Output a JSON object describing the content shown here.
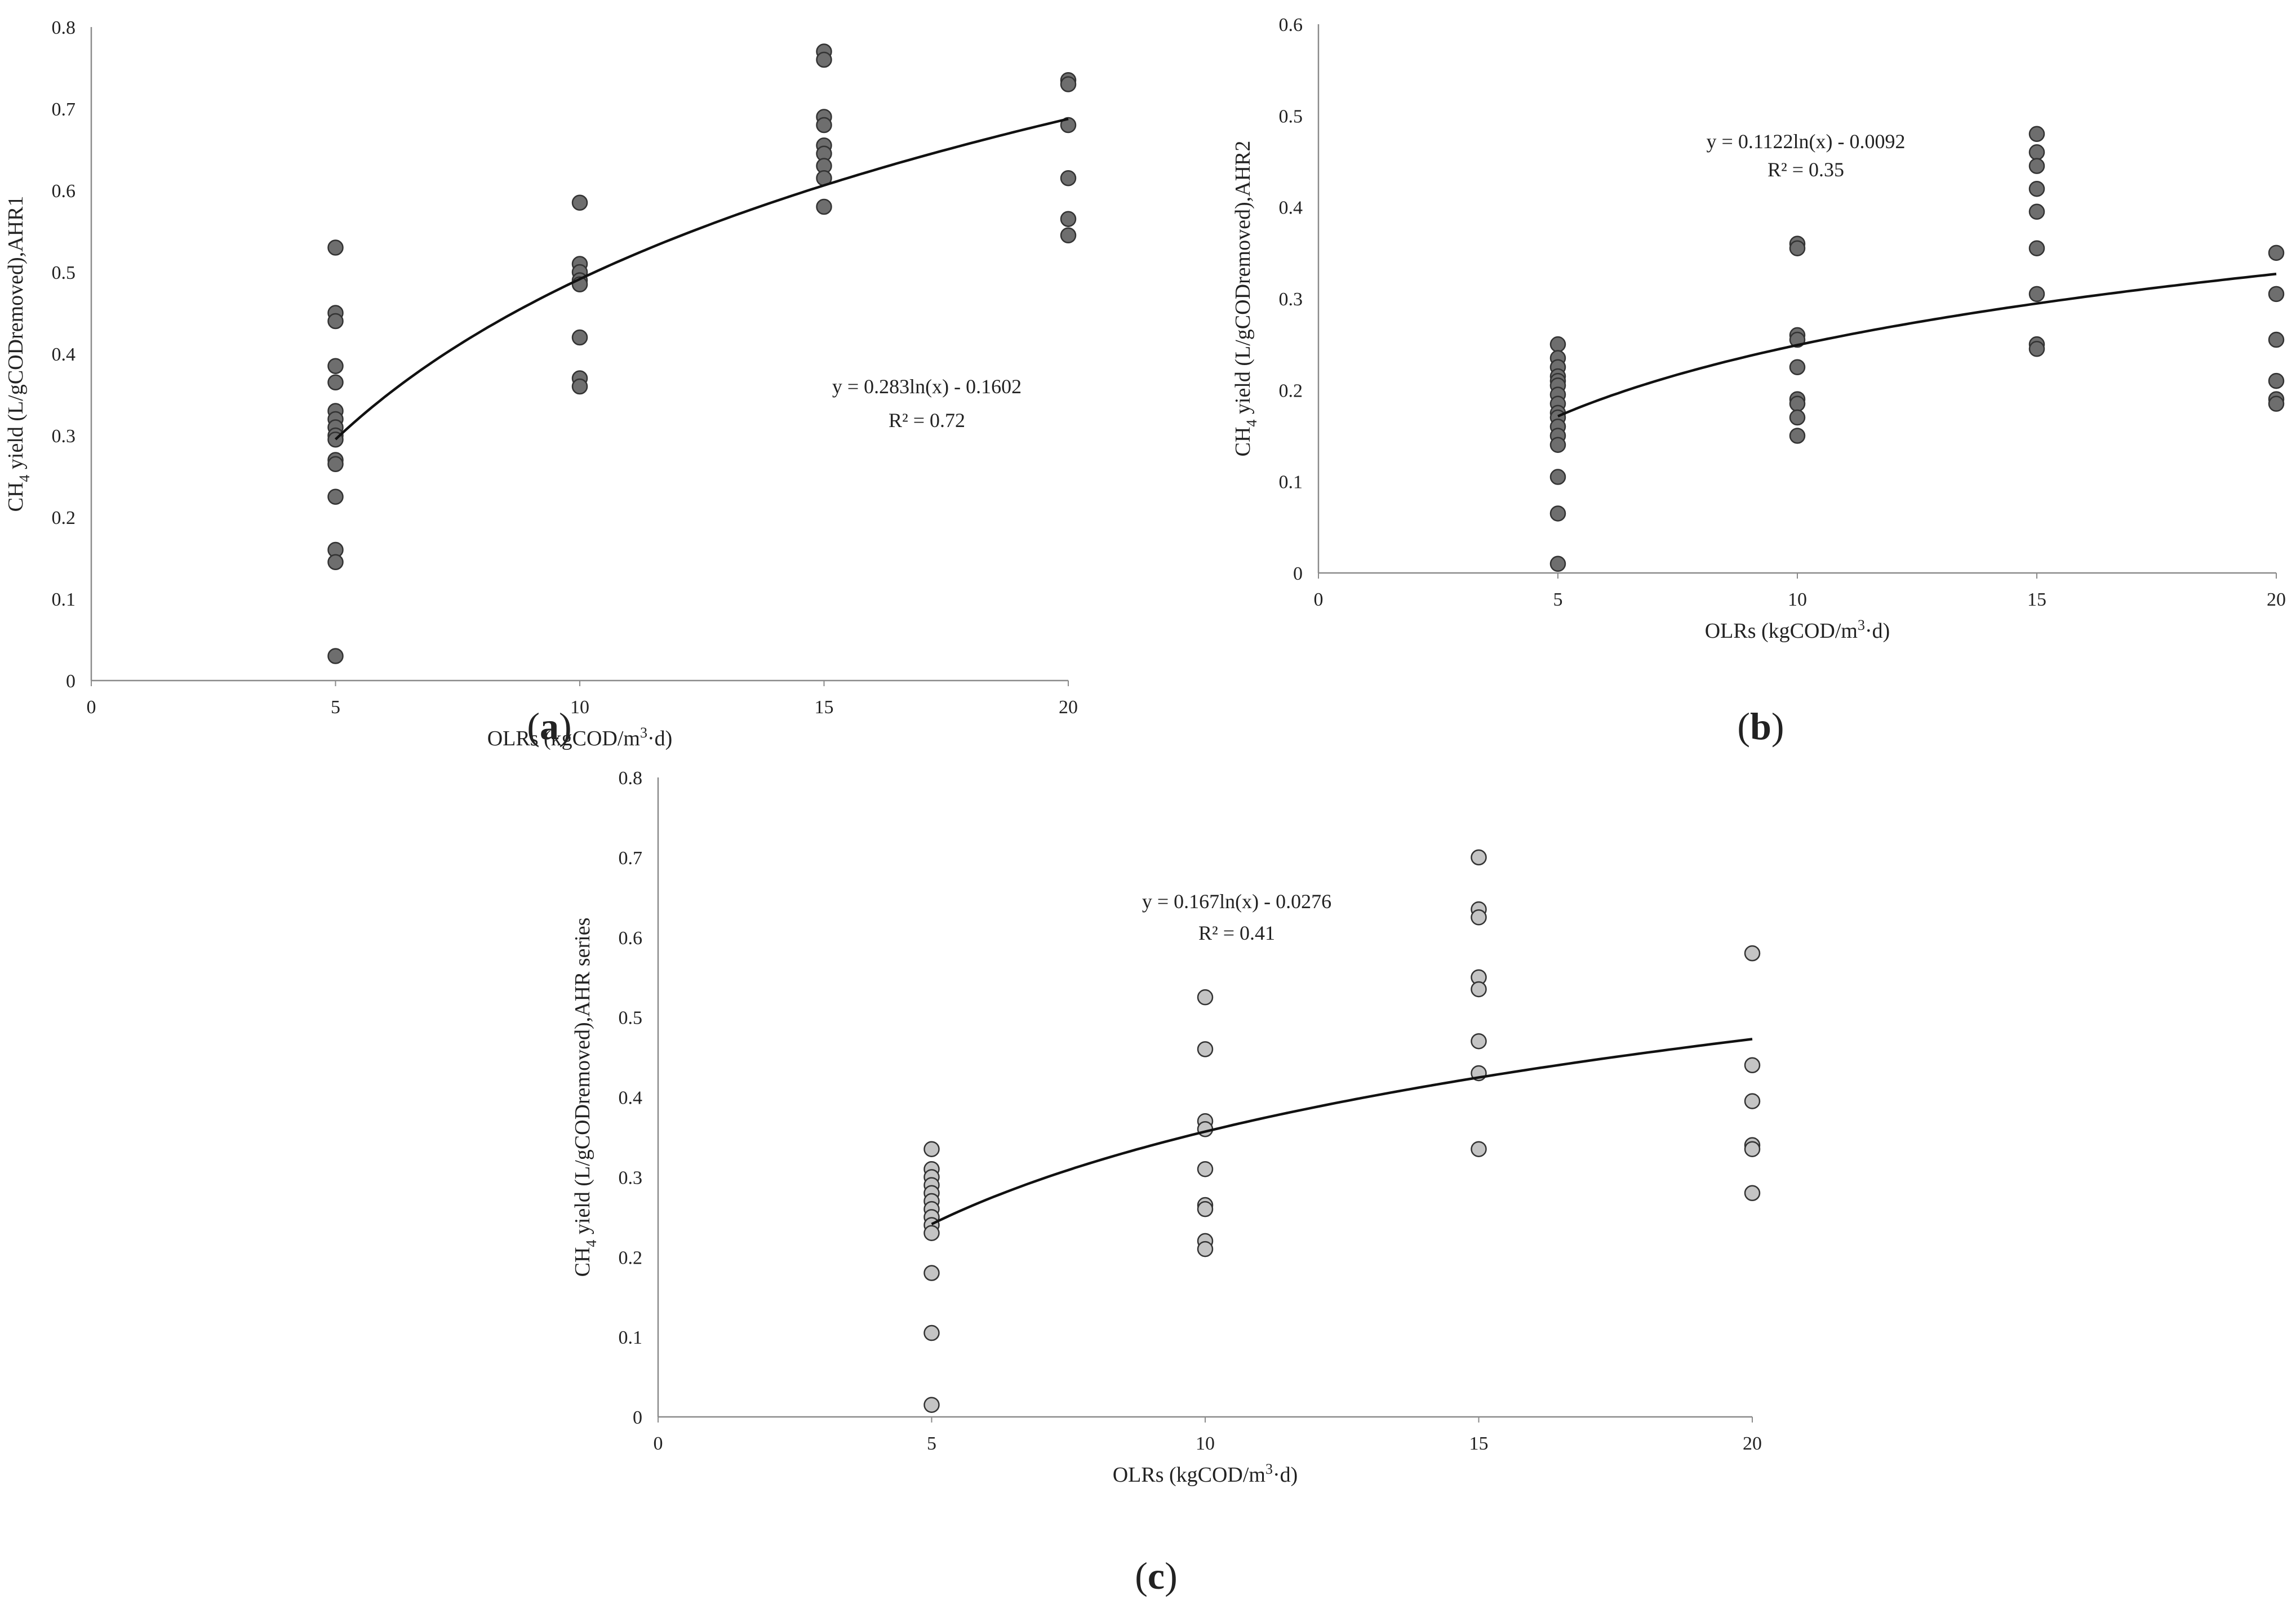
{
  "figure": {
    "panel_labels": [
      {
        "open": "(",
        "letter": "a",
        "close": ")"
      },
      {
        "open": "(",
        "letter": "b",
        "close": ")"
      },
      {
        "open": "(",
        "letter": "c",
        "close": ")"
      }
    ]
  },
  "chart_data": [
    {
      "id": "a",
      "type": "scatter",
      "title": "",
      "xlabel": {
        "pre": "OLRs (kgCOD/m",
        "sup": "3",
        "post": "·d)"
      },
      "ylabel": {
        "pre": "CH",
        "sub": "4",
        "post": " yield (L/gCODremoved),AHR1"
      },
      "xlim": [
        0,
        20
      ],
      "ylim": [
        0,
        0.8
      ],
      "xticks": [
        "0",
        "5",
        "10",
        "15",
        "20"
      ],
      "yticks": [
        "0",
        "0.1",
        "0.2",
        "0.3",
        "0.4",
        "0.5",
        "0.6",
        "0.7",
        "0.8"
      ],
      "marker_color": "#6e6e6e",
      "series": [
        {
          "name": "AHR1",
          "points": [
            [
              5,
              0.53
            ],
            [
              5,
              0.45
            ],
            [
              5,
              0.44
            ],
            [
              5,
              0.385
            ],
            [
              5,
              0.365
            ],
            [
              5,
              0.33
            ],
            [
              5,
              0.32
            ],
            [
              5,
              0.31
            ],
            [
              5,
              0.3
            ],
            [
              5,
              0.295
            ],
            [
              5,
              0.27
            ],
            [
              5,
              0.265
            ],
            [
              5,
              0.225
            ],
            [
              5,
              0.16
            ],
            [
              5,
              0.145
            ],
            [
              5,
              0.03
            ],
            [
              10,
              0.585
            ],
            [
              10,
              0.51
            ],
            [
              10,
              0.5
            ],
            [
              10,
              0.49
            ],
            [
              10,
              0.485
            ],
            [
              10,
              0.42
            ],
            [
              10,
              0.37
            ],
            [
              10,
              0.36
            ],
            [
              15,
              0.77
            ],
            [
              15,
              0.76
            ],
            [
              15,
              0.69
            ],
            [
              15,
              0.68
            ],
            [
              15,
              0.655
            ],
            [
              15,
              0.645
            ],
            [
              15,
              0.63
            ],
            [
              15,
              0.615
            ],
            [
              15,
              0.58
            ],
            [
              20,
              0.735
            ],
            [
              20,
              0.73
            ],
            [
              20,
              0.68
            ],
            [
              20,
              0.615
            ],
            [
              20,
              0.565
            ],
            [
              20,
              0.545
            ]
          ]
        }
      ],
      "trendline": {
        "type": "logarithmic",
        "a": 0.283,
        "b": -0.1602,
        "x_start": 5,
        "x_end": 20
      },
      "equation": "y = 0.283ln(x) - 0.1602",
      "r2": "R² = 0.72"
    },
    {
      "id": "b",
      "type": "scatter",
      "title": "",
      "xlabel": {
        "pre": "OLRs (kgCOD/m",
        "sup": "3",
        "post": "·d)"
      },
      "ylabel": {
        "pre": "CH",
        "sub": "4",
        "post": " yield (L/gCODremoved),AHR2"
      },
      "xlim": [
        0,
        20
      ],
      "ylim": [
        0,
        0.6
      ],
      "xticks": [
        "0",
        "5",
        "10",
        "15",
        "20"
      ],
      "yticks": [
        "0",
        "0.1",
        "0.2",
        "0.3",
        "0.4",
        "0.5",
        "0.6"
      ],
      "marker_color": "#6e6e6e",
      "series": [
        {
          "name": "AHR2",
          "points": [
            [
              5,
              0.25
            ],
            [
              5,
              0.235
            ],
            [
              5,
              0.225
            ],
            [
              5,
              0.215
            ],
            [
              5,
              0.21
            ],
            [
              5,
              0.205
            ],
            [
              5,
              0.195
            ],
            [
              5,
              0.185
            ],
            [
              5,
              0.175
            ],
            [
              5,
              0.17
            ],
            [
              5,
              0.16
            ],
            [
              5,
              0.15
            ],
            [
              5,
              0.14
            ],
            [
              5,
              0.105
            ],
            [
              5,
              0.065
            ],
            [
              5,
              0.01
            ],
            [
              10,
              0.36
            ],
            [
              10,
              0.355
            ],
            [
              10,
              0.26
            ],
            [
              10,
              0.255
            ],
            [
              10,
              0.225
            ],
            [
              10,
              0.19
            ],
            [
              10,
              0.185
            ],
            [
              10,
              0.17
            ],
            [
              10,
              0.15
            ],
            [
              15,
              0.48
            ],
            [
              15,
              0.46
            ],
            [
              15,
              0.445
            ],
            [
              15,
              0.42
            ],
            [
              15,
              0.395
            ],
            [
              15,
              0.355
            ],
            [
              15,
              0.305
            ],
            [
              15,
              0.25
            ],
            [
              15,
              0.245
            ],
            [
              20,
              0.35
            ],
            [
              20,
              0.305
            ],
            [
              20,
              0.255
            ],
            [
              20,
              0.21
            ],
            [
              20,
              0.19
            ],
            [
              20,
              0.185
            ]
          ]
        }
      ],
      "trendline": {
        "type": "logarithmic",
        "a": 0.1122,
        "b": -0.0092,
        "x_start": 5,
        "x_end": 20
      },
      "equation": "y = 0.1122ln(x) - 0.0092",
      "r2": "R² = 0.35"
    },
    {
      "id": "c",
      "type": "scatter",
      "title": "",
      "xlabel": {
        "pre": "OLRs (kgCOD/m",
        "sup": "3",
        "post": "·d)"
      },
      "ylabel": {
        "pre": "CH",
        "sub": "4",
        "post": " yield (L/gCODremoved),AHR series"
      },
      "xlim": [
        0,
        20
      ],
      "ylim": [
        0,
        0.8
      ],
      "xticks": [
        "0",
        "5",
        "10",
        "15",
        "20"
      ],
      "yticks": [
        "0",
        "0.1",
        "0.2",
        "0.3",
        "0.4",
        "0.5",
        "0.6",
        "0.7",
        "0.8"
      ],
      "marker_color": "#c4c4c4",
      "series": [
        {
          "name": "AHR series",
          "points": [
            [
              5,
              0.335
            ],
            [
              5,
              0.31
            ],
            [
              5,
              0.3
            ],
            [
              5,
              0.29
            ],
            [
              5,
              0.28
            ],
            [
              5,
              0.27
            ],
            [
              5,
              0.26
            ],
            [
              5,
              0.25
            ],
            [
              5,
              0.24
            ],
            [
              5,
              0.23
            ],
            [
              5,
              0.18
            ],
            [
              5,
              0.105
            ],
            [
              5,
              0.015
            ],
            [
              10,
              0.525
            ],
            [
              10,
              0.46
            ],
            [
              10,
              0.37
            ],
            [
              10,
              0.36
            ],
            [
              10,
              0.31
            ],
            [
              10,
              0.265
            ],
            [
              10,
              0.26
            ],
            [
              10,
              0.22
            ],
            [
              10,
              0.21
            ],
            [
              15,
              0.7
            ],
            [
              15,
              0.635
            ],
            [
              15,
              0.625
            ],
            [
              15,
              0.55
            ],
            [
              15,
              0.535
            ],
            [
              15,
              0.47
            ],
            [
              15,
              0.43
            ],
            [
              15,
              0.335
            ],
            [
              20,
              0.58
            ],
            [
              20,
              0.44
            ],
            [
              20,
              0.395
            ],
            [
              20,
              0.34
            ],
            [
              20,
              0.335
            ],
            [
              20,
              0.28
            ]
          ]
        }
      ],
      "trendline": {
        "type": "logarithmic",
        "a": 0.167,
        "b": -0.0276,
        "x_start": 5,
        "x_end": 20
      },
      "equation": "y = 0.167ln(x) - 0.0276",
      "r2": "R² = 0.41"
    }
  ]
}
